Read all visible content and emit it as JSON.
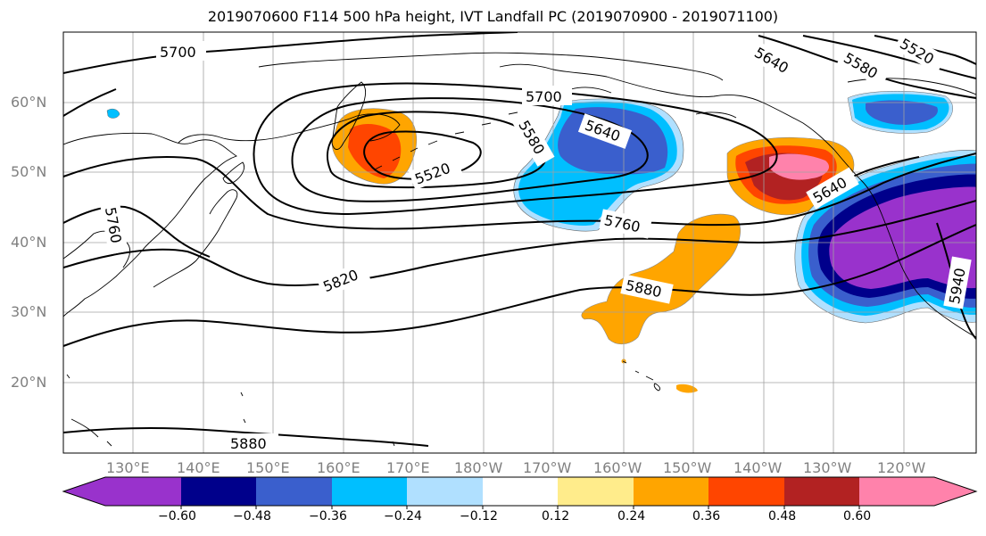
{
  "title": "2019070600 F114 500 hPa height, IVT Landfall PC (2019070900 - 2019071100)",
  "lat_labels": [
    "60°N",
    "50°N",
    "40°N",
    "30°N",
    "20°N"
  ],
  "lon_labels": [
    "130°E",
    "140°E",
    "150°E",
    "160°E",
    "170°E",
    "180°W",
    "170°W",
    "160°W",
    "150°W",
    "140°W",
    "130°W",
    "120°W"
  ],
  "contour_labels": [
    "5700",
    "5700",
    "5640",
    "5580",
    "5520",
    "5520",
    "5580",
    "5640",
    "5640",
    "5760",
    "5820",
    "5880",
    "5880",
    "5760",
    "5940"
  ],
  "colorbar": {
    "ticks": [
      "−0.60",
      "−0.48",
      "−0.36",
      "−0.24",
      "−0.12",
      "0.12",
      "0.24",
      "0.36",
      "0.48",
      "0.60"
    ],
    "colors": [
      "#9932CC",
      "#00008B",
      "#3A5FCD",
      "#00BFFF",
      "#B0E0FF",
      "#FFFFFF",
      "#FFEC8B",
      "#FFA500",
      "#FF4500",
      "#B22222",
      "#FF82AB"
    ]
  },
  "colors": {
    "axis_label": "#808080",
    "grid": "#a0a0a0"
  }
}
